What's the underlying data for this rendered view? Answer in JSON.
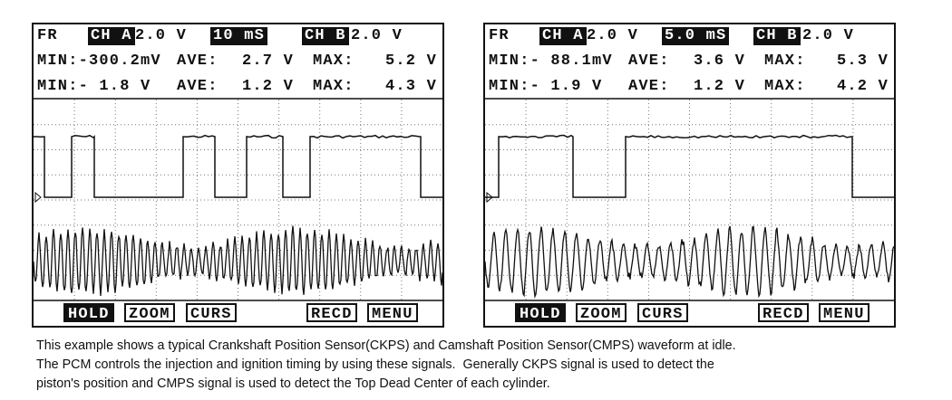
{
  "screens": [
    {
      "header": {
        "fr": "FR",
        "ch_a": "CH A",
        "ch_a_scale": "2.0 V",
        "time_base": "10 mS",
        "ch_b": "CH B",
        "ch_b_scale": "2.0 V"
      },
      "rows": [
        [
          "MIN:-300.2mV",
          "AVE:",
          "2.7 V",
          "MAX:",
          "5.2 V"
        ],
        [
          "MIN:- 1.8 V",
          "AVE:",
          "1.2 V",
          "MAX:",
          "4.3 V"
        ]
      ],
      "buttons": [
        "HOLD",
        "ZOOM",
        "CURS",
        "RECD",
        "MENU"
      ]
    },
    {
      "header": {
        "fr": "FR",
        "ch_a": "CH A",
        "ch_a_scale": "2.0 V",
        "time_base": "5.0 mS",
        "ch_b": "CH B",
        "ch_b_scale": "2.0 V"
      },
      "rows": [
        [
          "MIN:- 88.1mV",
          "AVE:",
          "3.6 V",
          "MAX:",
          "5.3 V"
        ],
        [
          "MIN:- 1.9 V",
          "AVE:",
          "1.2 V",
          "MAX:",
          "4.2 V"
        ]
      ],
      "buttons": [
        "HOLD",
        "ZOOM",
        "CURS",
        "RECD",
        "MENU"
      ]
    }
  ],
  "caption": [
    "This example shows a typical Crankshaft Position Sensor(CKPS) and Camshaft Position Sensor(CMPS) waveform at idle.",
    "The PCM controls the injection and ignition timing by using these signals.  Generally CKPS signal is used to detect the",
    "piston's position and CMPS signal is used to detect the Top Dead Center of each cylinder."
  ]
}
